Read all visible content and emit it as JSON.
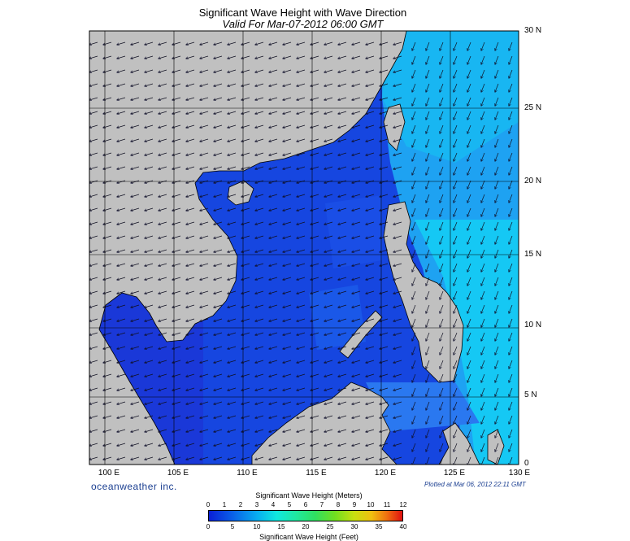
{
  "title": "Significant Wave Height with Wave Direction",
  "subtitle": "Valid For Mar-07-2012 06:00 GMT",
  "lat_labels": [
    "30 N",
    "25 N",
    "20 N",
    "15 N",
    "10 N",
    "5 N",
    "0"
  ],
  "lon_labels": [
    "100 E",
    "105 E",
    "110 E",
    "115 E",
    "120 E",
    "125 E",
    "130 E"
  ],
  "brand": "oceanweather inc.",
  "plotted": "Plotted at Mar 06, 2012 22:11 GMT",
  "colorbar": {
    "title_meters": "Significant Wave Height (Meters)",
    "title_feet": "Significant Wave Height (Feet)",
    "ticks_meters": [
      "0",
      "1",
      "2",
      "3",
      "4",
      "5",
      "6",
      "7",
      "8",
      "9",
      "10",
      "11",
      "12"
    ],
    "ticks_feet": [
      "0",
      "5",
      "10",
      "15",
      "20",
      "25",
      "30",
      "35",
      "40"
    ]
  },
  "map_extent": {
    "lon": [
      99,
      130
    ],
    "lat": [
      0,
      30
    ]
  },
  "wave_direction": "from northeast",
  "colors": {
    "land": "#c0c0c0",
    "sea_deep": "#1646e0",
    "sea_mid": "#1a6ef0",
    "sea_light": "#15b8f2"
  }
}
